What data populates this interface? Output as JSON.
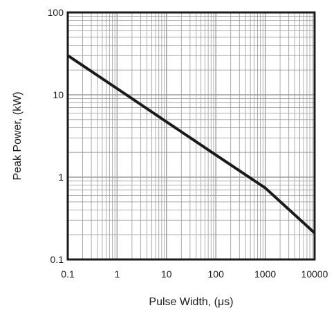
{
  "chart_data": {
    "type": "line",
    "title": "",
    "xlabel": "Pulse Width, (μs)",
    "ylabel": "Peak Power, (kW)",
    "xscale": "log",
    "yscale": "log",
    "xlim": [
      0.1,
      10000
    ],
    "ylim": [
      0.1,
      100
    ],
    "grid": true,
    "legend": "none",
    "x_ticks": [
      "0.1",
      "1",
      "10",
      "100",
      "1000",
      "10000"
    ],
    "y_ticks": [
      "0.1",
      "1",
      "10",
      "100"
    ],
    "series": [
      {
        "x": [
          0.1,
          1,
          10,
          100,
          1000,
          10000
        ],
        "y": [
          30,
          11.9,
          4.7,
          1.86,
          0.74,
          0.21
        ]
      }
    ],
    "line_color": "#1a1a1a",
    "grid_color": "#9a9a9a"
  }
}
